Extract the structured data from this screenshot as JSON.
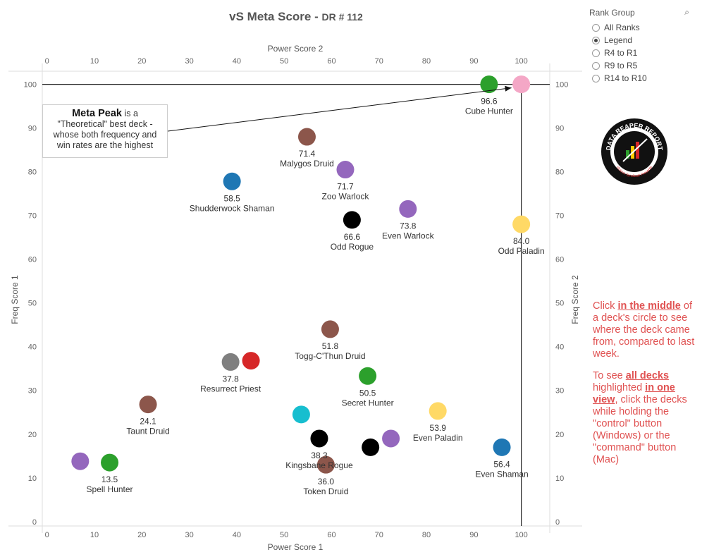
{
  "title": {
    "main": "vS Meta Score - ",
    "sub": "DR # 112"
  },
  "legend": {
    "title": "Rank Group",
    "options": [
      {
        "label": "All Ranks",
        "selected": false
      },
      {
        "label": "Legend",
        "selected": true
      },
      {
        "label": "R4 to R1",
        "selected": false
      },
      {
        "label": "R9 to R5",
        "selected": false
      },
      {
        "label": "R14 to R10",
        "selected": false
      }
    ]
  },
  "callout": {
    "bold": "Meta Peak",
    "rest1": " is a",
    "rest2": "\"Theoretical\" best deck -",
    "rest3": "whose both frequency and",
    "rest4": "win rates are the highest"
  },
  "note": {
    "p1a": "Click ",
    "p1b": "in the middle",
    "p1c": " of a deck's circle to see where the deck came from, compared to last week.",
    "p2a": "To see ",
    "p2b": "all decks",
    "p2c": " highlighted ",
    "p2d": "in one view",
    "p2e": ", click the decks while holding the \"control\" button (Windows) or the \"command\" button (Mac)"
  },
  "logo": {
    "text": "DATA REAPER REPORT",
    "sub": "Vicious Syndicate Presents"
  },
  "chart_data": {
    "type": "scatter",
    "xlabel": "Power Score 1",
    "xlabel_top": "Power Score 2",
    "ylabel": "Freq Score 1",
    "ylabel_right": "Freq Score 2",
    "xlim": [
      -1,
      106
    ],
    "ylim": [
      -1,
      103
    ],
    "xticks": [
      0,
      10,
      20,
      30,
      40,
      50,
      60,
      70,
      80,
      90,
      100
    ],
    "yticks": [
      0,
      10,
      20,
      30,
      40,
      50,
      60,
      70,
      80,
      90,
      100
    ],
    "reference_lines": {
      "x": 100,
      "y": 100
    },
    "points": [
      {
        "x": 100.0,
        "y": 100.0,
        "color": "#f4a7c6",
        "label": "",
        "score": ""
      },
      {
        "x": 93.2,
        "y": 100.0,
        "color": "#2ca02c",
        "label": "Cube Hunter",
        "score": "96.6"
      },
      {
        "x": 54.8,
        "y": 88.0,
        "color": "#8c564b",
        "label": "Malygos Druid",
        "score": "71.4"
      },
      {
        "x": 62.9,
        "y": 80.5,
        "color": "#9467bd",
        "label": "Zoo Warlock",
        "score": "71.7"
      },
      {
        "x": 39.0,
        "y": 77.8,
        "color": "#1f77b4",
        "label": "Shudderwock Shaman",
        "score": "58.5"
      },
      {
        "x": 76.1,
        "y": 71.5,
        "color": "#9467bd",
        "label": "Even Warlock",
        "score": "73.8"
      },
      {
        "x": 64.3,
        "y": 69.0,
        "color": "#000000",
        "label": "Odd Rogue",
        "score": "66.6"
      },
      {
        "x": 100.0,
        "y": 68.0,
        "color": "#ffd966",
        "label": "Odd Paladin",
        "score": "84.0"
      },
      {
        "x": 59.7,
        "y": 44.0,
        "color": "#8c564b",
        "label": "Togg-C'Thun Druid",
        "score": "51.8"
      },
      {
        "x": 38.7,
        "y": 36.5,
        "color": "#7f7f7f",
        "label": "Resurrect Priest",
        "score": "37.8"
      },
      {
        "x": 43.0,
        "y": 36.8,
        "color": "#d62728",
        "label": "",
        "score": ""
      },
      {
        "x": 67.6,
        "y": 33.3,
        "color": "#2ca02c",
        "label": "Secret Hunter",
        "score": "50.5"
      },
      {
        "x": 21.3,
        "y": 26.8,
        "color": "#8c564b",
        "label": "Taunt Druid",
        "score": "24.1"
      },
      {
        "x": 82.4,
        "y": 25.3,
        "color": "#ffd966",
        "label": "Even Paladin",
        "score": "53.9"
      },
      {
        "x": 53.6,
        "y": 24.5,
        "color": "#17becf",
        "label": "",
        "score": ""
      },
      {
        "x": 57.4,
        "y": 19.0,
        "color": "#000000",
        "label": "Kingsbane Rogue",
        "score": "38.3"
      },
      {
        "x": 72.5,
        "y": 19.0,
        "color": "#9467bd",
        "label": "",
        "score": ""
      },
      {
        "x": 68.2,
        "y": 17.0,
        "color": "#000000",
        "label": "",
        "score": ""
      },
      {
        "x": 95.9,
        "y": 17.0,
        "color": "#1f77b4",
        "label": "Even Shaman",
        "score": "56.4"
      },
      {
        "x": 7.0,
        "y": 13.8,
        "color": "#9467bd",
        "label": "",
        "score": ""
      },
      {
        "x": 13.2,
        "y": 13.5,
        "color": "#2ca02c",
        "label": "Spell Hunter",
        "score": "13.5"
      },
      {
        "x": 58.8,
        "y": 13.0,
        "color": "#8c564b",
        "label": "Token Druid",
        "score": "36.0"
      }
    ]
  }
}
